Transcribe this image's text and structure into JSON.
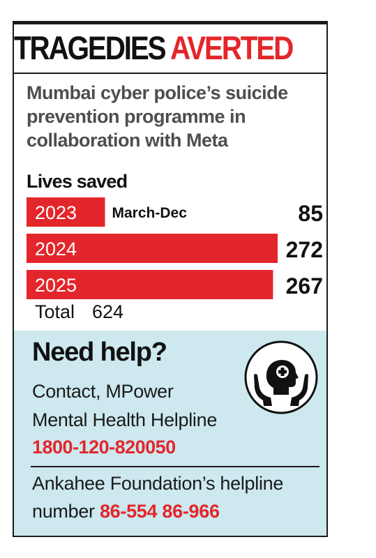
{
  "header": {
    "title_part1": "TRAGEDIES",
    "title_part2": "AVERTED"
  },
  "subtitle_lines": [
    "Mumbai cyber police’s suicide",
    "prevention programme in",
    "collaboration with Meta"
  ],
  "chart_data": {
    "type": "bar",
    "orientation": "horizontal",
    "title": "Lives saved",
    "categories": [
      "2023",
      "2024",
      "2025"
    ],
    "values": [
      85,
      272,
      267
    ],
    "annotations": [
      {
        "category": "2023",
        "text": "March-Dec"
      }
    ],
    "bar_color": "#e3262b",
    "total_label": "Total",
    "total_value": "624"
  },
  "help": {
    "title": "Need help?",
    "line1": "Contact, MPower",
    "line2": "Mental Health Helpline",
    "number1": "1800-120-820050",
    "line3": "Ankahee Foundation’s helpline",
    "line4_prefix": "number",
    "number2": "86-554 86-966",
    "icon": "mental-health-care-icon"
  },
  "colors": {
    "accent_red": "#e3262b",
    "panel_blue": "#cde8ef",
    "text_dark": "#111111",
    "subtitle_gray": "#4e4e4e"
  }
}
